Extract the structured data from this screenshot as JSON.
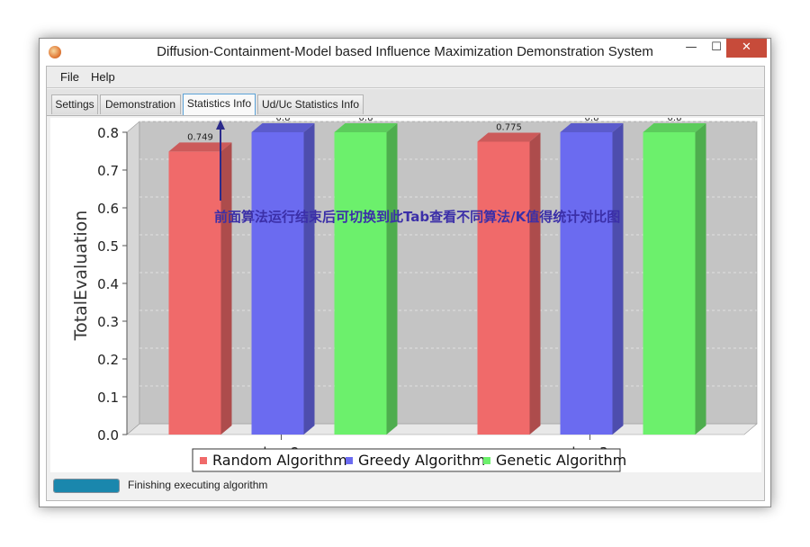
{
  "window": {
    "title": "Diffusion-Containment-Model based Influence Maximization Demonstration System",
    "min_glyph": "—",
    "max_glyph": "☐",
    "close_glyph": "✕",
    "icon": "app-logo-icon"
  },
  "menu": {
    "items": [
      {
        "label": "File"
      },
      {
        "label": "Help"
      }
    ]
  },
  "tabs": [
    {
      "label": "Settings",
      "active": false
    },
    {
      "label": "Demonstration",
      "active": false
    },
    {
      "label": "Statistics Info",
      "active": true
    },
    {
      "label": "Ud/Uc Statistics Info",
      "active": false
    }
  ],
  "annotation": {
    "text": "前面算法运行结束后可切换到此Tab查看不同算法/K值得统计对比图",
    "color": "#3b2fa8"
  },
  "status": {
    "text": "Finishing executing algorithm",
    "progress": 1.0
  },
  "chart_data": {
    "type": "bar",
    "title": "",
    "xlabel": "",
    "ylabel": "TotalEvaluation",
    "ylim": [
      0.0,
      0.8
    ],
    "yticks": [
      "0.0",
      "0.1",
      "0.2",
      "0.3",
      "0.4",
      "0.5",
      "0.6",
      "0.7",
      "0.8"
    ],
    "categories": [
      "k = 2",
      "k = 3"
    ],
    "series": [
      {
        "name": "Random Algorithm",
        "color": "#f06a6a",
        "values": [
          0.749,
          0.775
        ],
        "labels": [
          "0.749",
          "0.775"
        ]
      },
      {
        "name": "Greedy Algorithm",
        "color": "#6b6bf0",
        "values": [
          0.8,
          0.8
        ],
        "labels": [
          "0.8",
          "0.8"
        ]
      },
      {
        "name": "Genetic Algorithm",
        "color": "#6cf06c",
        "values": [
          0.8,
          0.8
        ],
        "labels": [
          "0.8",
          "0.8"
        ]
      }
    ],
    "grid": true,
    "legend_position": "bottom"
  }
}
